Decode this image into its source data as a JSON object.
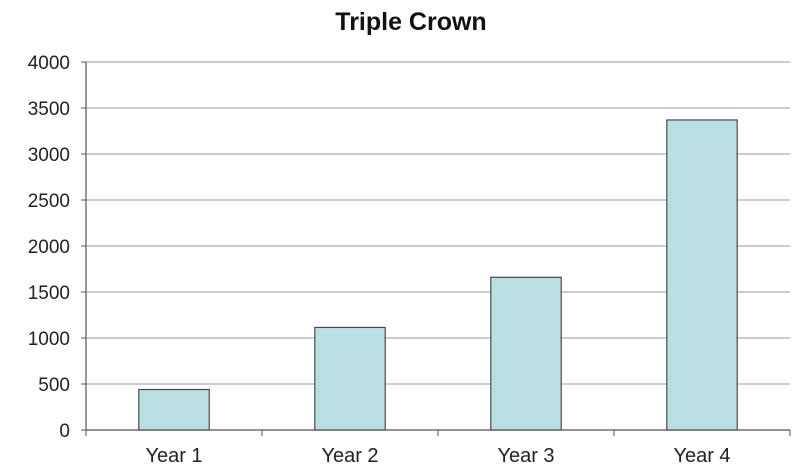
{
  "chart_data": {
    "type": "bar",
    "title": "Triple Crown",
    "categories": [
      "Year 1",
      "Year 2",
      "Year 3",
      "Year 4"
    ],
    "values": [
      440,
      1115,
      1660,
      3370
    ],
    "ylim": [
      0,
      4000
    ],
    "yticks": [
      "0",
      "500",
      "1000",
      "1500",
      "2000",
      "2500",
      "3000",
      "3500",
      "4000"
    ],
    "grid": true,
    "legend": "none",
    "colors": {
      "bar_fill": "#b9dfe3",
      "bar_stroke": "#4a4a4a",
      "grid": "#9a9a9a",
      "axis": "#555555"
    }
  }
}
